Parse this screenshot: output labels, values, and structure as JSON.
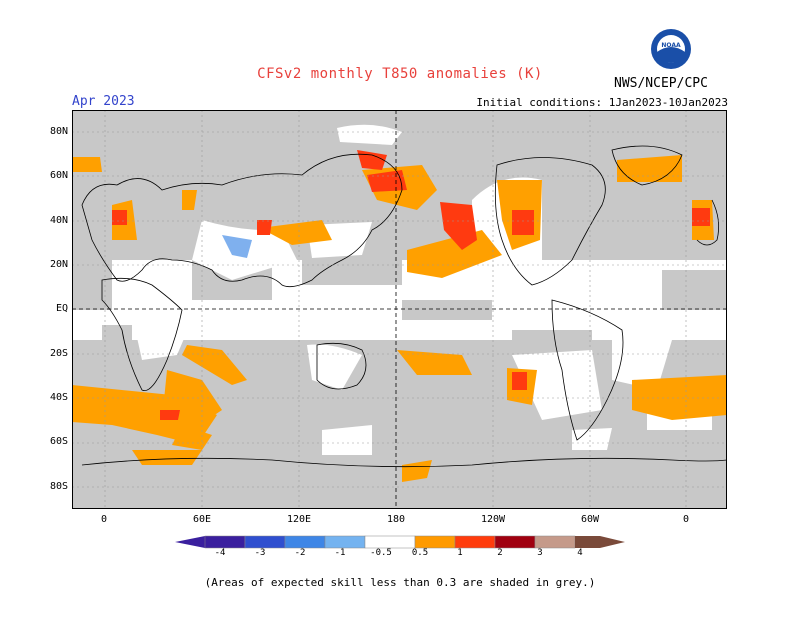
{
  "header": {
    "title": "CFSv2 monthly T850 anomalies (K)",
    "title_color": "#e8413c",
    "agency": "NWS/NCEP/CPC",
    "period": "Apr 2023",
    "period_color": "#3344cc",
    "initial_conditions": "Initial conditions: 1Jan2023-10Jan2023",
    "logo_text": "NOAA"
  },
  "axes": {
    "lat_labels": [
      "80N",
      "60N",
      "40N",
      "20N",
      "EQ",
      "20S",
      "40S",
      "60S",
      "80S"
    ],
    "lon_labels": [
      "0",
      "60E",
      "120E",
      "180",
      "120W",
      "60W",
      "0"
    ]
  },
  "colorbar": {
    "ticks": [
      "-4",
      "-3",
      "-2",
      "-1",
      "-0.5",
      "0.5",
      "1",
      "2",
      "3",
      "4"
    ],
    "colors": [
      "#3a1f9e",
      "#2f4fcf",
      "#3e86e6",
      "#74b3f0",
      "#ffffff",
      "#ff9a00",
      "#ff3c0c",
      "#a00010",
      "#c59a8a",
      "#7a4a3a"
    ]
  },
  "legend_note": "(Areas of expected skill less than 0.3 are shaded in grey.)",
  "palette": {
    "skill_grey": "#c8c8c8",
    "anom_orange": "#ffa000",
    "anom_red": "#ff3a10",
    "neg_blue": "#7fb0ee"
  }
}
